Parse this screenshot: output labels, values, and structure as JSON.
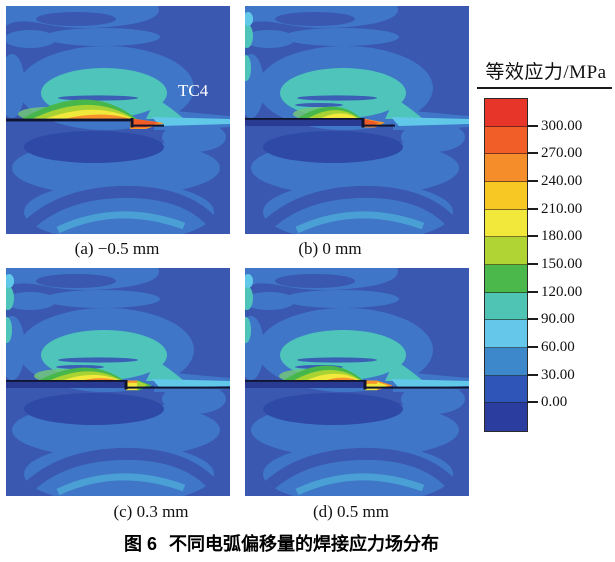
{
  "figure": {
    "caption_prefix": "图 6",
    "caption_text": "不同电弧偏移量的焊接应力场分布"
  },
  "panels": [
    {
      "id": "a",
      "label": "(a) −0.5 mm",
      "annotation": "TC4"
    },
    {
      "id": "b",
      "label": "(b) 0 mm",
      "annotation": ""
    },
    {
      "id": "c",
      "label": "(c) 0.3 mm",
      "annotation": ""
    },
    {
      "id": "d",
      "label": "(d) 0.5 mm",
      "annotation": ""
    }
  ],
  "legend": {
    "title": "等效应力/MPa",
    "tick_labels": [
      "300.00",
      "270.00",
      "240.00",
      "210.00",
      "180.00",
      "150.00",
      "120.00",
      "90.00",
      "60.00",
      "30.00",
      "0.00"
    ],
    "colors": [
      "#e8352a",
      "#f15e27",
      "#f68d2b",
      "#f7c823",
      "#f2e83b",
      "#b0d434",
      "#4ab84a",
      "#4fc4b4",
      "#65c8ea",
      "#3d87cb",
      "#2f55b8",
      "#2c3da0"
    ]
  },
  "palette": {
    "base": "#3a58b0",
    "deep": "#2e4aa6",
    "mid": "#3f76c8",
    "arc": "#4aa0d5",
    "cyan": "#62c8ea",
    "teal": "#4ec4ba",
    "mint": "#72c57a",
    "green": "#47b74b",
    "ygreen": "#a9d233",
    "yellow": "#f1e93c",
    "orange": "#f6932c",
    "redor": "#f15b26",
    "navy": "#283a92",
    "ink": "#10142e",
    "streak": "#3a5fb5",
    "annotation_color": "#ffffff"
  },
  "chart_data": {
    "type": "heatmap",
    "title": "图 6 不同电弧偏移量的焊接应力场分布",
    "legend_title": "等效应力/MPa",
    "units": "MPa",
    "scale_ticks": [
      300.0,
      270.0,
      240.0,
      210.0,
      180.0,
      150.0,
      120.0,
      90.0,
      60.0,
      30.0,
      0.0
    ],
    "panels": [
      {
        "label": "(a)",
        "arc_offset_mm": -0.5
      },
      {
        "label": "(b)",
        "arc_offset_mm": 0
      },
      {
        "label": "(c)",
        "arc_offset_mm": 0.3
      },
      {
        "label": "(d)",
        "arc_offset_mm": 0.5
      }
    ],
    "material_annotation": "TC4"
  }
}
